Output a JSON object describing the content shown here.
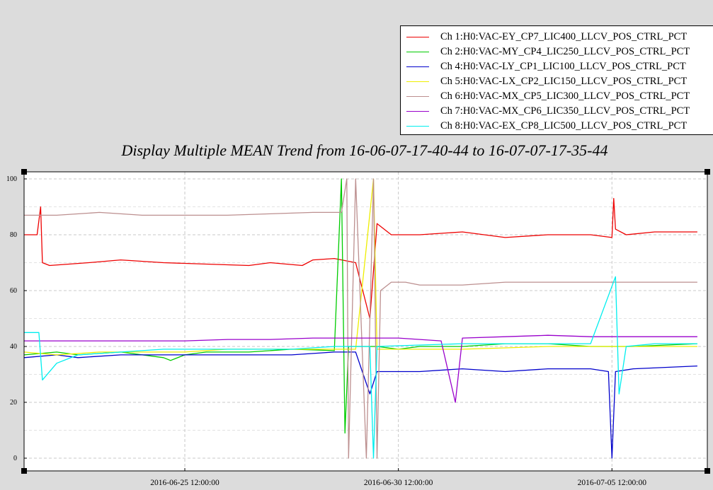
{
  "chart_data": {
    "type": "line",
    "title": "Display Multiple MEAN Trend from 16-06-07-17-40-44 to 16-07-07-17-35-44",
    "xlabel": "",
    "ylabel": "",
    "xlim": [
      "2016-06-21 17:40:44",
      "2016-07-07 17:35:44"
    ],
    "ylim": [
      0,
      100
    ],
    "grid": true,
    "legend_position": "top-right",
    "y_ticks": [
      "0",
      "20",
      "40",
      "60",
      "80",
      "100"
    ],
    "x_ticks": [
      {
        "t": "2016-06-25 12:00:00",
        "label": "2016-06-25 12:00:00"
      },
      {
        "t": "2016-06-30 12:00:00",
        "label": "2016-06-30 12:00:00"
      },
      {
        "t": "2016-07-05 12:00:00",
        "label": "2016-07-05 12:00:00"
      }
    ],
    "series": [
      {
        "name": "Ch 1:H0:VAC-EY_CP7_LIC400_LLCV_POS_CTRL_PCT",
        "color": "#ee0000",
        "points": [
          [
            "2016-06-21 17:40",
            80
          ],
          [
            "2016-06-22 01:00",
            80
          ],
          [
            "2016-06-22 03:00",
            90
          ],
          [
            "2016-06-22 04:00",
            70
          ],
          [
            "2016-06-22 08:00",
            69
          ],
          [
            "2016-06-23 06:00",
            70
          ],
          [
            "2016-06-24 00:00",
            71
          ],
          [
            "2016-06-25 00:00",
            70
          ],
          [
            "2016-06-26 00:00",
            69.5
          ],
          [
            "2016-06-27 00:00",
            69
          ],
          [
            "2016-06-27 12:00",
            70
          ],
          [
            "2016-06-28 06:00",
            69
          ],
          [
            "2016-06-28 12:00",
            71
          ],
          [
            "2016-06-29 00:00",
            71.5
          ],
          [
            "2016-06-29 12:00",
            70
          ],
          [
            "2016-06-29 20:00",
            50
          ],
          [
            "2016-06-30 00:00",
            84
          ],
          [
            "2016-06-30 08:00",
            80
          ],
          [
            "2016-07-01 00:00",
            80
          ],
          [
            "2016-07-02 00:00",
            81
          ],
          [
            "2016-07-03 00:00",
            79
          ],
          [
            "2016-07-04 00:00",
            80
          ],
          [
            "2016-07-05 00:00",
            80
          ],
          [
            "2016-07-05 12:00",
            79
          ],
          [
            "2016-07-05 13:00",
            93
          ],
          [
            "2016-07-05 14:00",
            82
          ],
          [
            "2016-07-05 20:00",
            80
          ],
          [
            "2016-07-06 12:00",
            81
          ],
          [
            "2016-07-07 12:00",
            81
          ]
        ]
      },
      {
        "name": "Ch 2:H0:VAC-MY_CP4_LIC250_LLCV_POS_CTRL_PCT",
        "color": "#00cc00",
        "points": [
          [
            "2016-06-21 17:40",
            37
          ],
          [
            "2016-06-22 12:00",
            38
          ],
          [
            "2016-06-23 00:00",
            37
          ],
          [
            "2016-06-24 00:00",
            38
          ],
          [
            "2016-06-25 00:00",
            36
          ],
          [
            "2016-06-25 04:00",
            35
          ],
          [
            "2016-06-25 12:00",
            37
          ],
          [
            "2016-06-26 00:00",
            38
          ],
          [
            "2016-06-27 00:00",
            38
          ],
          [
            "2016-06-28 00:00",
            39
          ],
          [
            "2016-06-29 00:00",
            38.5
          ],
          [
            "2016-06-29 04:00",
            100
          ],
          [
            "2016-06-29 06:00",
            9
          ],
          [
            "2016-06-29 08:00",
            40
          ],
          [
            "2016-06-30 00:00",
            40
          ],
          [
            "2016-06-30 12:00",
            39
          ],
          [
            "2016-07-01 00:00",
            40
          ],
          [
            "2016-07-02 00:00",
            40
          ],
          [
            "2016-07-03 00:00",
            41
          ],
          [
            "2016-07-04 00:00",
            41
          ],
          [
            "2016-07-05 00:00",
            40
          ],
          [
            "2016-07-06 00:00",
            40
          ],
          [
            "2016-07-07 12:00",
            41
          ]
        ]
      },
      {
        "name": "Ch 4:H0:VAC-LY_CP1_LIC100_LLCV_POS_CTRL_PCT",
        "color": "#0000cc",
        "points": [
          [
            "2016-06-21 17:40",
            36
          ],
          [
            "2016-06-22 12:00",
            37
          ],
          [
            "2016-06-23 00:00",
            36
          ],
          [
            "2016-06-24 00:00",
            37
          ],
          [
            "2016-06-25 00:00",
            37
          ],
          [
            "2016-06-26 00:00",
            37
          ],
          [
            "2016-06-27 00:00",
            37
          ],
          [
            "2016-06-28 00:00",
            37
          ],
          [
            "2016-06-29 00:00",
            38
          ],
          [
            "2016-06-29 12:00",
            38
          ],
          [
            "2016-06-29 20:00",
            23
          ],
          [
            "2016-06-30 00:00",
            31
          ],
          [
            "2016-07-01 00:00",
            31
          ],
          [
            "2016-07-02 00:00",
            32
          ],
          [
            "2016-07-03 00:00",
            31
          ],
          [
            "2016-07-04 00:00",
            32
          ],
          [
            "2016-07-05 00:00",
            32
          ],
          [
            "2016-07-05 10:00",
            31
          ],
          [
            "2016-07-05 12:00",
            0
          ],
          [
            "2016-07-05 14:00",
            31
          ],
          [
            "2016-07-06 00:00",
            32
          ],
          [
            "2016-07-07 12:00",
            33
          ]
        ]
      },
      {
        "name": "Ch 5:H0:VAC-LX_CP2_LIC150_LLCV_POS_CTRL_PCT",
        "color": "#eeee00",
        "points": [
          [
            "2016-06-21 17:40",
            38
          ],
          [
            "2016-06-22 12:00",
            37
          ],
          [
            "2016-06-23 12:00",
            38
          ],
          [
            "2016-06-24 12:00",
            38
          ],
          [
            "2016-06-25 12:00",
            38
          ],
          [
            "2016-06-26 12:00",
            39
          ],
          [
            "2016-06-27 12:00",
            39
          ],
          [
            "2016-06-28 12:00",
            39
          ],
          [
            "2016-06-29 12:00",
            39
          ],
          [
            "2016-06-29 22:00",
            100
          ],
          [
            "2016-06-30 00:00",
            39
          ],
          [
            "2016-07-01 00:00",
            39
          ],
          [
            "2016-07-02 00:00",
            39
          ],
          [
            "2016-07-03 00:00",
            39.5
          ],
          [
            "2016-07-04 00:00",
            40
          ],
          [
            "2016-07-05 00:00",
            40
          ],
          [
            "2016-07-06 00:00",
            40
          ],
          [
            "2016-07-07 12:00",
            40
          ]
        ]
      },
      {
        "name": "Ch 6:H0:VAC-MX_CP5_LIC300_LLCV_POS_CTRL_PCT",
        "color": "#bc8f8f",
        "points": [
          [
            "2016-06-21 17:40",
            87
          ],
          [
            "2016-06-22 12:00",
            87
          ],
          [
            "2016-06-23 12:00",
            88
          ],
          [
            "2016-06-24 12:00",
            87
          ],
          [
            "2016-06-25 12:00",
            87
          ],
          [
            "2016-06-26 12:00",
            87
          ],
          [
            "2016-06-27 12:00",
            87.5
          ],
          [
            "2016-06-28 12:00",
            88
          ],
          [
            "2016-06-29 04:00",
            88
          ],
          [
            "2016-06-29 07:00",
            100
          ],
          [
            "2016-06-29 08:00",
            0
          ],
          [
            "2016-06-29 12:00",
            100
          ],
          [
            "2016-06-29 18:00",
            0
          ],
          [
            "2016-06-29 22:00",
            100
          ],
          [
            "2016-06-30 00:00",
            0
          ],
          [
            "2016-06-30 02:00",
            60
          ],
          [
            "2016-06-30 08:00",
            63
          ],
          [
            "2016-06-30 16:00",
            63
          ],
          [
            "2016-07-01 00:00",
            62
          ],
          [
            "2016-07-02 00:00",
            62
          ],
          [
            "2016-07-03 00:00",
            63
          ],
          [
            "2016-07-04 00:00",
            63
          ],
          [
            "2016-07-05 00:00",
            63
          ],
          [
            "2016-07-06 00:00",
            63
          ],
          [
            "2016-07-07 12:00",
            63
          ]
        ]
      },
      {
        "name": "Ch 7:H0:VAC-MX_CP6_LIC350_LLCV_POS_CTRL_PCT",
        "color": "#9900cc",
        "points": [
          [
            "2016-06-21 17:40",
            42
          ],
          [
            "2016-06-22 12:00",
            42
          ],
          [
            "2016-06-23 12:00",
            42
          ],
          [
            "2016-06-24 12:00",
            42
          ],
          [
            "2016-06-25 12:00",
            42
          ],
          [
            "2016-06-26 12:00",
            42.5
          ],
          [
            "2016-06-27 12:00",
            42.5
          ],
          [
            "2016-06-28 12:00",
            43
          ],
          [
            "2016-06-29 12:00",
            43
          ],
          [
            "2016-06-30 12:00",
            43
          ],
          [
            "2016-07-01 12:00",
            42
          ],
          [
            "2016-07-01 20:00",
            20
          ],
          [
            "2016-07-02 00:00",
            43
          ],
          [
            "2016-07-03 00:00",
            43.5
          ],
          [
            "2016-07-04 00:00",
            44
          ],
          [
            "2016-07-05 00:00",
            43.5
          ],
          [
            "2016-07-06 00:00",
            43.5
          ],
          [
            "2016-07-07 12:00",
            43.5
          ]
        ]
      },
      {
        "name": "Ch 8:H0:VAC-EX_CP8_LIC500_LLCV_POS_CTRL_PCT",
        "color": "#00eeee",
        "points": [
          [
            "2016-06-21 17:40",
            45
          ],
          [
            "2016-06-22 02:00",
            45
          ],
          [
            "2016-06-22 04:00",
            28
          ],
          [
            "2016-06-22 12:00",
            34
          ],
          [
            "2016-06-23 00:00",
            37
          ],
          [
            "2016-06-24 00:00",
            38
          ],
          [
            "2016-06-25 00:00",
            39
          ],
          [
            "2016-06-26 00:00",
            39
          ],
          [
            "2016-06-27 00:00",
            39
          ],
          [
            "2016-06-28 00:00",
            39
          ],
          [
            "2016-06-29 00:00",
            40
          ],
          [
            "2016-06-29 20:00",
            40
          ],
          [
            "2016-06-29 22:00",
            0
          ],
          [
            "2016-06-30 00:00",
            40
          ],
          [
            "2016-07-01 00:00",
            40.5
          ],
          [
            "2016-07-02 00:00",
            41
          ],
          [
            "2016-07-03 00:00",
            41
          ],
          [
            "2016-07-04 00:00",
            41
          ],
          [
            "2016-07-05 00:00",
            41
          ],
          [
            "2016-07-05 14:00",
            65
          ],
          [
            "2016-07-05 16:00",
            23
          ],
          [
            "2016-07-05 20:00",
            40
          ],
          [
            "2016-07-06 12:00",
            41
          ],
          [
            "2016-07-07 12:00",
            41
          ]
        ]
      }
    ]
  }
}
